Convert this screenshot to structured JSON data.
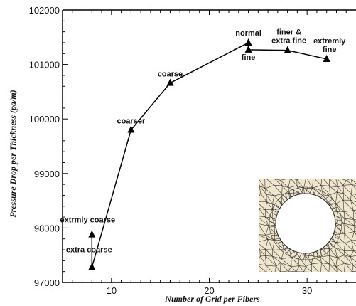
{
  "chart_data": {
    "type": "line",
    "title": "",
    "xlabel": "Number of Grid per Fibers",
    "ylabel": "Pressure Drop per Thickness (pa/m)",
    "xlim": [
      5,
      35
    ],
    "ylim": [
      97000,
      102000
    ],
    "xticks": [
      10,
      20,
      30
    ],
    "yticks": [
      97000,
      98000,
      99000,
      100000,
      101000,
      102000
    ],
    "grid": false,
    "legend": "none",
    "series": [
      {
        "x": [
          8,
          8,
          12,
          16,
          24,
          24,
          28,
          32
        ],
        "y": [
          97880,
          97280,
          99800,
          100660,
          101400,
          101270,
          101260,
          101100
        ],
        "labels": [
          "extrmly coarse",
          "extra coarse",
          "coarser",
          "coarse",
          "normal",
          "fine",
          "finer &\nextra fine",
          "extremly\nfine"
        ],
        "marker": "triangle",
        "color": "#000000"
      }
    ],
    "inset": {
      "description": "mesh cross-section",
      "fill_color": "#efe6cc",
      "line_color": "#333333"
    }
  }
}
